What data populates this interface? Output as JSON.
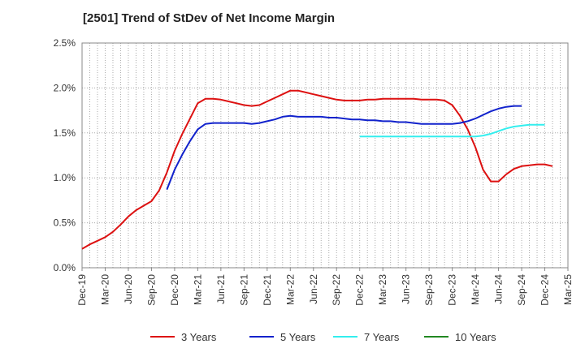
{
  "chart_data": {
    "type": "line",
    "title": "[2501]  Trend of StDev of Net Income Margin",
    "xlabel": "",
    "ylabel": "",
    "x_ticks": [
      "Dec-19",
      "Mar-20",
      "Jun-20",
      "Sep-20",
      "Dec-20",
      "Mar-21",
      "Jun-21",
      "Sep-21",
      "Dec-21",
      "Mar-22",
      "Jun-22",
      "Sep-22",
      "Dec-22",
      "Mar-23",
      "Jun-23",
      "Sep-23",
      "Dec-23",
      "Mar-24",
      "Jun-24",
      "Sep-24",
      "Dec-24",
      "Mar-25"
    ],
    "y_ticks": [
      "0.0%",
      "0.5%",
      "1.0%",
      "1.5%",
      "2.0%",
      "2.5%"
    ],
    "ylim": [
      0,
      2.5
    ],
    "grid": true,
    "legend_position": "bottom",
    "series": [
      {
        "name": "3 Years",
        "color": "#dd1111",
        "start_index": 0,
        "values": [
          0.21,
          0.26,
          0.3,
          0.34,
          0.4,
          0.48,
          0.57,
          0.64,
          0.69,
          0.74,
          0.86,
          1.06,
          1.3,
          1.49,
          1.66,
          1.83,
          1.88,
          1.88,
          1.87,
          1.85,
          1.83,
          1.81,
          1.8,
          1.81,
          1.85,
          1.89,
          1.93,
          1.97,
          1.97,
          1.95,
          1.93,
          1.91,
          1.89,
          1.87,
          1.86,
          1.86,
          1.86,
          1.87,
          1.87,
          1.88,
          1.88,
          1.88,
          1.88,
          1.88,
          1.87,
          1.87,
          1.87,
          1.86,
          1.81,
          1.69,
          1.54,
          1.34,
          1.09,
          0.96,
          0.96,
          1.04,
          1.1,
          1.13,
          1.14,
          1.15,
          1.15,
          1.13
        ]
      },
      {
        "name": "5 Years",
        "color": "#1122cc",
        "start_index": 11,
        "values": [
          0.87,
          1.09,
          1.26,
          1.41,
          1.54,
          1.6,
          1.61,
          1.61,
          1.61,
          1.61,
          1.61,
          1.6,
          1.61,
          1.63,
          1.65,
          1.68,
          1.69,
          1.68,
          1.68,
          1.68,
          1.68,
          1.67,
          1.67,
          1.66,
          1.65,
          1.65,
          1.64,
          1.64,
          1.63,
          1.63,
          1.62,
          1.62,
          1.61,
          1.6,
          1.6,
          1.6,
          1.6,
          1.6,
          1.61,
          1.63,
          1.66,
          1.7,
          1.74,
          1.77,
          1.79,
          1.8,
          1.8
        ]
      },
      {
        "name": "7 Years",
        "color": "#33eeee",
        "start_index": 36,
        "values": [
          1.46,
          1.46,
          1.46,
          1.46,
          1.46,
          1.46,
          1.46,
          1.46,
          1.46,
          1.46,
          1.46,
          1.46,
          1.46,
          1.46,
          1.46,
          1.46,
          1.47,
          1.49,
          1.52,
          1.55,
          1.57,
          1.58,
          1.59,
          1.59,
          1.59
        ]
      },
      {
        "name": "10 Years",
        "color": "#228822",
        "start_index": 0,
        "values": []
      }
    ]
  }
}
